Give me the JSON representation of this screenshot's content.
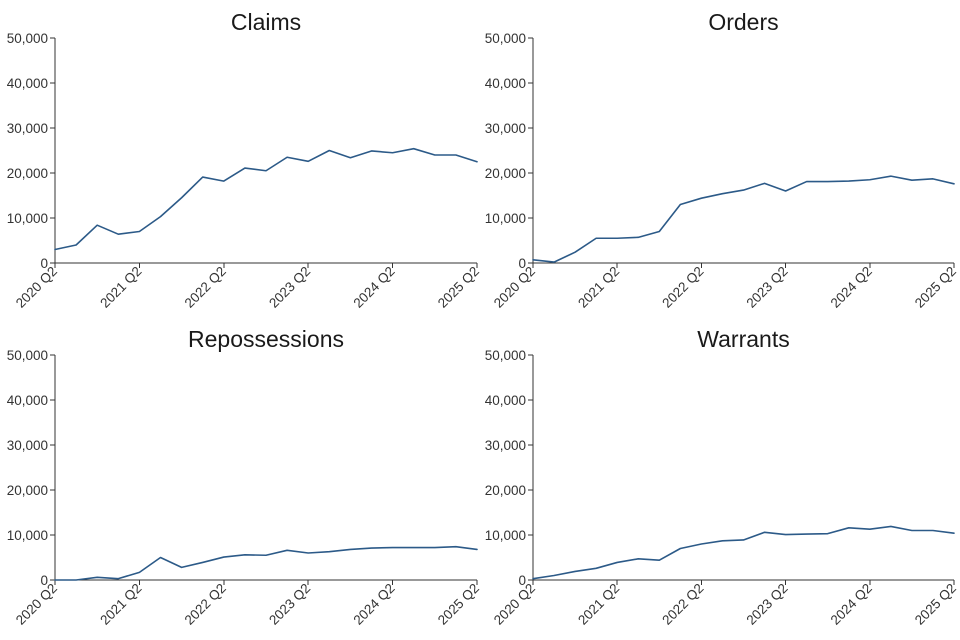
{
  "colors": {
    "line": "#2c5a88",
    "axis": "#333333"
  },
  "chart_data": [
    {
      "type": "line",
      "title": "Claims",
      "x": [
        "2020 Q2",
        "2020 Q3",
        "2020 Q4",
        "2021 Q1",
        "2021 Q2",
        "2021 Q3",
        "2021 Q4",
        "2022 Q1",
        "2022 Q2",
        "2022 Q3",
        "2022 Q4",
        "2023 Q1",
        "2023 Q2",
        "2023 Q3",
        "2023 Q4",
        "2024 Q1",
        "2024 Q2",
        "2024 Q3",
        "2024 Q4",
        "2025 Q1",
        "2025 Q2"
      ],
      "x_tick_labels": [
        "2020 Q2",
        "2021 Q2",
        "2022 Q2",
        "2023 Q2",
        "2024 Q2",
        "2025 Q2"
      ],
      "y_tick_labels": [
        "0",
        "10,000",
        "20,000",
        "30,000",
        "40,000",
        "50,000"
      ],
      "y_ticks": [
        0,
        10000,
        20000,
        30000,
        40000,
        50000
      ],
      "ylim": [
        0,
        50000
      ],
      "values": [
        3000,
        4000,
        8400,
        6400,
        7000,
        10300,
        14500,
        19100,
        18200,
        21100,
        20500,
        23500,
        22600,
        25000,
        23400,
        24900,
        24500,
        25400,
        24000,
        24000,
        22500
      ]
    },
    {
      "type": "line",
      "title": "Orders",
      "x": [
        "2020 Q2",
        "2020 Q3",
        "2020 Q4",
        "2021 Q1",
        "2021 Q2",
        "2021 Q3",
        "2021 Q4",
        "2022 Q1",
        "2022 Q2",
        "2022 Q3",
        "2022 Q4",
        "2023 Q1",
        "2023 Q2",
        "2023 Q3",
        "2023 Q4",
        "2024 Q1",
        "2024 Q2",
        "2024 Q3",
        "2024 Q4",
        "2025 Q1",
        "2025 Q2"
      ],
      "x_tick_labels": [
        "2020 Q2",
        "2021 Q2",
        "2022 Q2",
        "2023 Q2",
        "2024 Q2",
        "2025 Q2"
      ],
      "y_tick_labels": [
        "0",
        "10,000",
        "20,000",
        "30,000",
        "40,000",
        "50,000"
      ],
      "y_ticks": [
        0,
        10000,
        20000,
        30000,
        40000,
        50000
      ],
      "ylim": [
        0,
        50000
      ],
      "values": [
        700,
        200,
        2400,
        5500,
        5500,
        5700,
        7000,
        13000,
        14400,
        15400,
        16200,
        17700,
        16000,
        18100,
        18100,
        18200,
        18500,
        19300,
        18400,
        18700,
        17600
      ]
    },
    {
      "type": "line",
      "title": "Repossessions",
      "x": [
        "2020 Q2",
        "2020 Q3",
        "2020 Q4",
        "2021 Q1",
        "2021 Q2",
        "2021 Q3",
        "2021 Q4",
        "2022 Q1",
        "2022 Q2",
        "2022 Q3",
        "2022 Q4",
        "2023 Q1",
        "2023 Q2",
        "2023 Q3",
        "2023 Q4",
        "2024 Q1",
        "2024 Q2",
        "2024 Q3",
        "2024 Q4",
        "2025 Q1",
        "2025 Q2"
      ],
      "x_tick_labels": [
        "2020 Q2",
        "2021 Q2",
        "2022 Q2",
        "2023 Q2",
        "2024 Q2",
        "2025 Q2"
      ],
      "y_tick_labels": [
        "0",
        "10,000",
        "20,000",
        "30,000",
        "40,000",
        "50,000"
      ],
      "y_ticks": [
        0,
        10000,
        20000,
        30000,
        40000,
        50000
      ],
      "ylim": [
        0,
        50000
      ],
      "values": [
        0,
        0,
        600,
        300,
        1700,
        5000,
        2800,
        3900,
        5100,
        5600,
        5500,
        6600,
        6000,
        6300,
        6800,
        7100,
        7200,
        7200,
        7200,
        7400,
        6800
      ]
    },
    {
      "type": "line",
      "title": "Warrants",
      "x": [
        "2020 Q2",
        "2020 Q3",
        "2020 Q4",
        "2021 Q1",
        "2021 Q2",
        "2021 Q3",
        "2021 Q4",
        "2022 Q1",
        "2022 Q2",
        "2022 Q3",
        "2022 Q4",
        "2023 Q1",
        "2023 Q2",
        "2023 Q3",
        "2023 Q4",
        "2024 Q1",
        "2024 Q2",
        "2024 Q3",
        "2024 Q4",
        "2025 Q1",
        "2025 Q2"
      ],
      "x_tick_labels": [
        "2020 Q2",
        "2021 Q2",
        "2022 Q2",
        "2023 Q2",
        "2024 Q2",
        "2025 Q2"
      ],
      "y_tick_labels": [
        "0",
        "10,000",
        "20,000",
        "30,000",
        "40,000",
        "50,000"
      ],
      "y_ticks": [
        0,
        10000,
        20000,
        30000,
        40000,
        50000
      ],
      "ylim": [
        0,
        50000
      ],
      "values": [
        300,
        1000,
        1900,
        2600,
        3900,
        4700,
        4400,
        7000,
        8000,
        8700,
        8900,
        10600,
        10100,
        10200,
        10300,
        11600,
        11300,
        11900,
        11000,
        11000,
        10400
      ]
    }
  ]
}
